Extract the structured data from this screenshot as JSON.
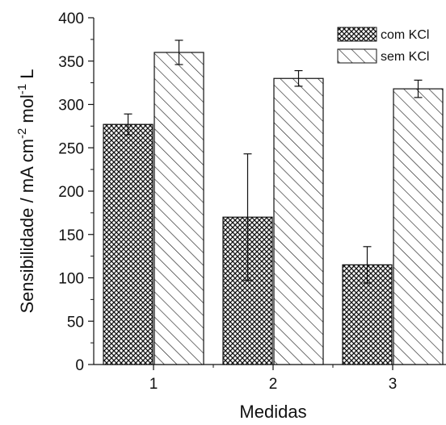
{
  "chart_data": {
    "type": "bar",
    "xlabel": "Medidas",
    "ylabel_parts": {
      "base": "Sensibilidade / mA cm",
      "sup1": "-2",
      "mid": " mol",
      "sup2": "-1",
      "end": " L"
    },
    "categories": [
      "1",
      "2",
      "3"
    ],
    "ylim": [
      0,
      400
    ],
    "yticks": [
      0,
      50,
      100,
      150,
      200,
      250,
      300,
      350,
      400
    ],
    "legend_position": "top-right",
    "series": [
      {
        "name": "com KCl",
        "pattern": "crosshatch",
        "values": [
          277,
          170,
          115
        ],
        "errors": [
          12,
          73,
          21
        ]
      },
      {
        "name": "sem KCl",
        "pattern": "diagonal",
        "values": [
          360,
          330,
          318
        ],
        "errors": [
          14,
          9,
          10
        ]
      }
    ]
  }
}
